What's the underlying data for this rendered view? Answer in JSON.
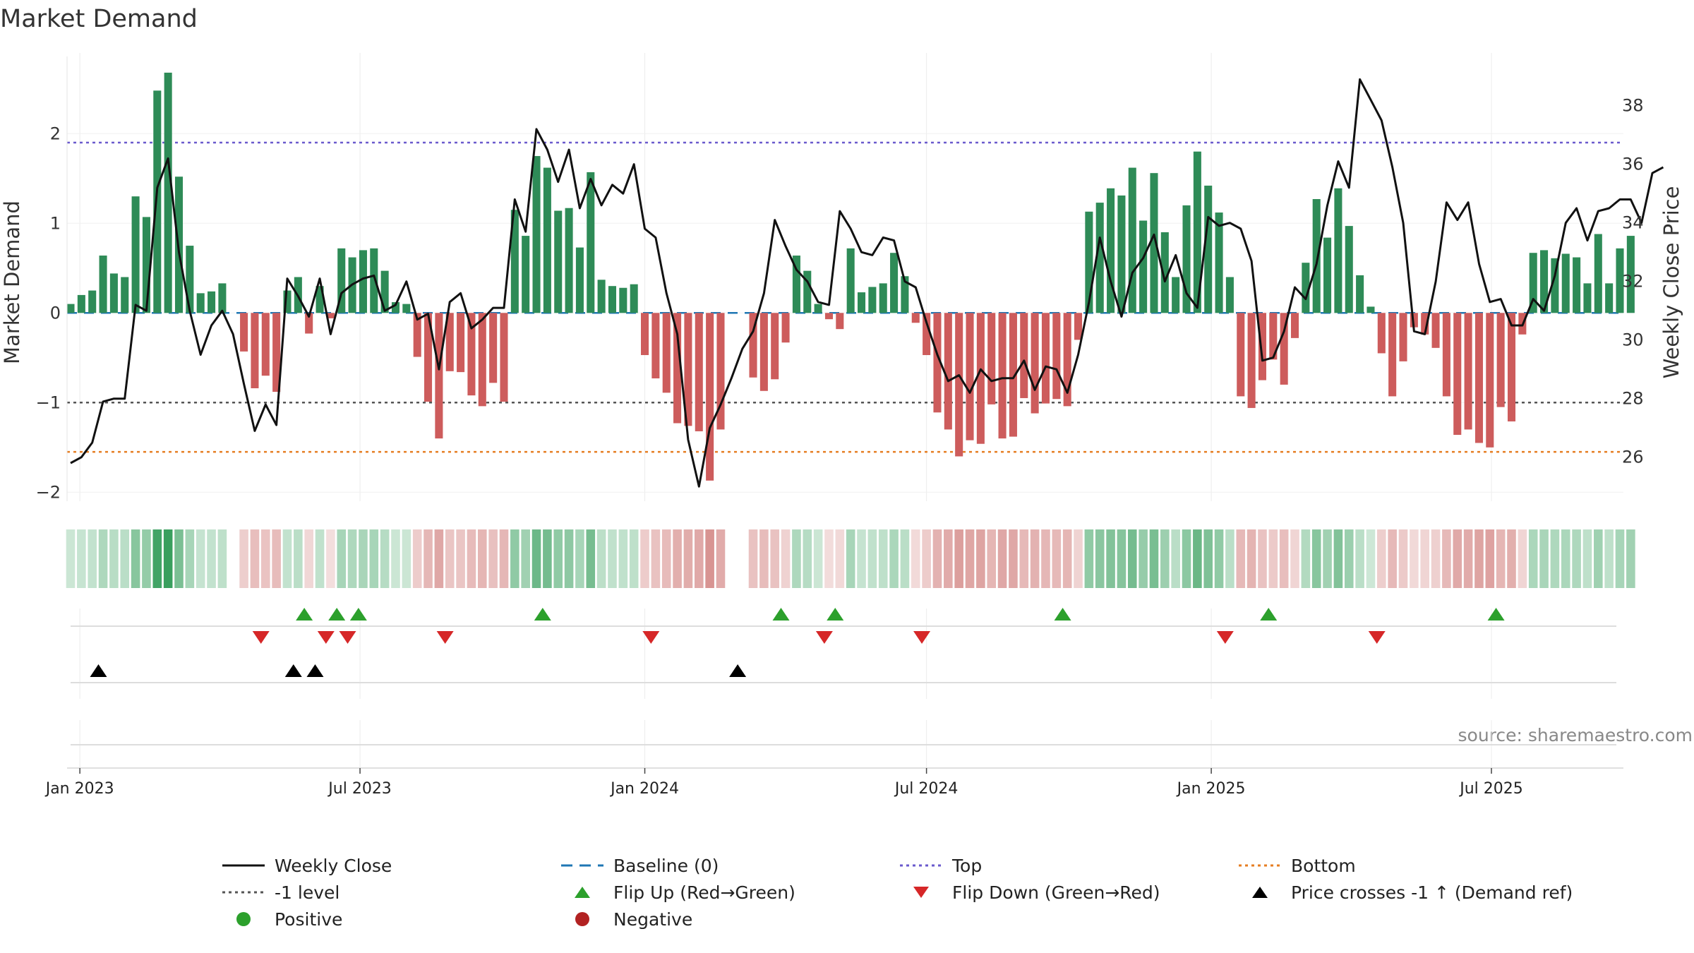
{
  "chart_data": {
    "type": "bar+line",
    "title": "Market Demand",
    "ylabel": "Market Demand",
    "ylabel_right": "Weekly Close Price",
    "ylim": [
      -2.1,
      2.9
    ],
    "ylim_right": [
      24.5,
      39.8
    ],
    "yticks": [
      -2,
      -1,
      0,
      1,
      2
    ],
    "yticks_right": [
      26,
      28,
      30,
      32,
      34,
      36,
      38
    ],
    "x_start": "2022-12-26",
    "x_end": "2025-09-22",
    "x_ticks": [
      {
        "date": "2023-01-01",
        "label": "Jan 2023"
      },
      {
        "date": "2023-07-01",
        "label": "Jul 2023"
      },
      {
        "date": "2024-01-01",
        "label": "Jan 2024"
      },
      {
        "date": "2024-07-01",
        "label": "Jul 2024"
      },
      {
        "date": "2025-01-01",
        "label": "Jan 2025"
      },
      {
        "date": "2025-07-01",
        "label": "Jul 2025"
      }
    ],
    "top_level": 1.9,
    "bottom_level": -1.55,
    "minus1_level": -1,
    "baseline": 0,
    "demand": [
      0.1,
      0.2,
      0.25,
      0.64,
      0.44,
      0.4,
      1.3,
      1.07,
      2.48,
      2.68,
      1.52,
      0.75,
      0.22,
      0.24,
      0.33,
      0,
      -0.43,
      -0.84,
      -0.7,
      -0.88,
      0.25,
      0.4,
      -0.23,
      0.3,
      -0.06,
      0.72,
      0.62,
      0.7,
      0.72,
      0.47,
      0.12,
      0.1,
      -0.49,
      -0.99,
      -1.4,
      -0.65,
      -0.66,
      -0.92,
      -1.04,
      -0.78,
      -0.99,
      1.15,
      0.86,
      1.75,
      1.62,
      1.14,
      1.17,
      0.73,
      1.57,
      0.37,
      0.3,
      0.28,
      0.32,
      -0.47,
      -0.73,
      -0.89,
      -1.23,
      -1.26,
      -1.32,
      -1.87,
      -1.3,
      0,
      0,
      -0.72,
      -0.87,
      -0.74,
      -0.33,
      0.64,
      0.47,
      0.1,
      -0.07,
      -0.18,
      0.72,
      0.23,
      0.29,
      0.33,
      0.67,
      0.41,
      -0.11,
      -0.47,
      -1.11,
      -1.3,
      -1.6,
      -1.42,
      -1.46,
      -1.02,
      -1.4,
      -1.38,
      -0.95,
      -1.12,
      -1.01,
      -0.96,
      -1.04,
      -0.3,
      1.13,
      1.23,
      1.39,
      1.31,
      1.62,
      1.03,
      1.56,
      0.9,
      0.4,
      1.2,
      1.8,
      1.42,
      1.12,
      0.4,
      -0.93,
      -1.06,
      -0.75,
      -0.52,
      -0.8,
      -0.28,
      0.56,
      1.27,
      0.84,
      1.39,
      0.97,
      0.42,
      0.07,
      -0.45,
      -0.93,
      -0.54,
      -0.16,
      -0.24,
      -0.39,
      -0.93,
      -1.36,
      -1.3,
      -1.45,
      -1.5,
      -1.05,
      -1.21,
      -0.24,
      0.67,
      0.7,
      0.61,
      0.66,
      0.62,
      0.33,
      0.88,
      0.33,
      0.72,
      0.86
    ],
    "close": [
      25.8,
      26,
      26.5,
      27.9,
      28,
      28,
      31.2,
      31,
      35.2,
      36.2,
      33,
      31,
      29.5,
      30.5,
      31,
      30.2,
      28.5,
      26.9,
      27.8,
      27.1,
      32.1,
      31.5,
      30.8,
      32.1,
      30.2,
      31.6,
      31.9,
      32.1,
      32.2,
      31,
      31.2,
      32,
      30.7,
      30.9,
      29,
      31.3,
      31.6,
      30.4,
      30.7,
      31.1,
      31.1,
      34.8,
      33.7,
      37.2,
      36.5,
      35.4,
      36.5,
      34.5,
      35.5,
      34.6,
      35.3,
      35,
      36,
      33.8,
      33.5,
      31.6,
      30.2,
      26.6,
      25,
      27,
      27.8,
      28.7,
      29.7,
      30.3,
      31.6,
      34.1,
      33.2,
      32.4,
      32,
      31.3,
      31.2,
      34.4,
      33.8,
      33,
      32.9,
      33.5,
      33.4,
      32,
      31.8,
      30.6,
      29.5,
      28.6,
      28.8,
      28.2,
      29,
      28.6,
      28.7,
      28.7,
      29.3,
      28.3,
      29.1,
      29,
      28.2,
      29.5,
      31.3,
      33.5,
      32,
      30.8,
      32.3,
      32.8,
      33.6,
      32,
      32.9,
      31.6,
      31.1,
      34.2,
      33.9,
      34,
      33.8,
      32.7,
      29.3,
      29.4,
      30.3,
      31.8,
      31.4,
      32.6,
      34.6,
      36.1,
      35.2,
      38.9,
      38.2,
      37.5,
      35.9,
      34,
      30.3,
      30.2,
      32,
      34.7,
      34.1,
      34.7,
      32.6,
      31.3,
      31.4,
      30.5,
      30.5,
      31.4,
      31,
      32.2,
      34,
      34.5,
      33.4,
      34.4,
      34.5,
      34.8,
      34.8,
      34,
      35.7,
      35.9
    ],
    "flip_up_dates": [
      "2023-05-26",
      "2023-06-16",
      "2023-06-30",
      "2023-10-27",
      "2024-03-29",
      "2024-05-03",
      "2024-09-27",
      "2025-02-07",
      "2025-07-04"
    ],
    "flip_down_dates": [
      "2023-04-28",
      "2023-06-09",
      "2023-06-23",
      "2023-08-25",
      "2024-01-05",
      "2024-04-26",
      "2024-06-28",
      "2025-01-10",
      "2025-04-18"
    ],
    "cross_up_dates": [
      "2023-01-13",
      "2023-05-19",
      "2023-06-02",
      "2024-03-01"
    ],
    "source": "source: sharemaestro.com",
    "colors": {
      "positive": "#2e8b57",
      "negative": "#cd5c5c",
      "close": "#111111",
      "baseline": "#1f77b4",
      "top": "#6a5acd",
      "minus1": "#555555",
      "bottom": "#e67e22",
      "flip_up": "#2ca02c",
      "flip_down": "#d62728",
      "cross_up": "#000000"
    },
    "legend": [
      {
        "label": "Weekly Close",
        "marker": "line"
      },
      {
        "label": "Baseline (0)",
        "marker": "dash"
      },
      {
        "label": "Top",
        "marker": "dot-line"
      },
      {
        "label": "Bottom",
        "marker": "dot-line-orange"
      },
      {
        "label": "-1 level",
        "marker": "dot-line-grey"
      },
      {
        "label": "Flip Up (Red→Green)",
        "marker": "triangle-up-green"
      },
      {
        "label": "Flip Down (Green→Red)",
        "marker": "triangle-down-red"
      },
      {
        "label": "Price crosses -1 ↑ (Demand ref)",
        "marker": "triangle-up-black"
      },
      {
        "label": "Positive",
        "marker": "circle-green"
      },
      {
        "label": "Negative",
        "marker": "circle-red"
      }
    ]
  }
}
